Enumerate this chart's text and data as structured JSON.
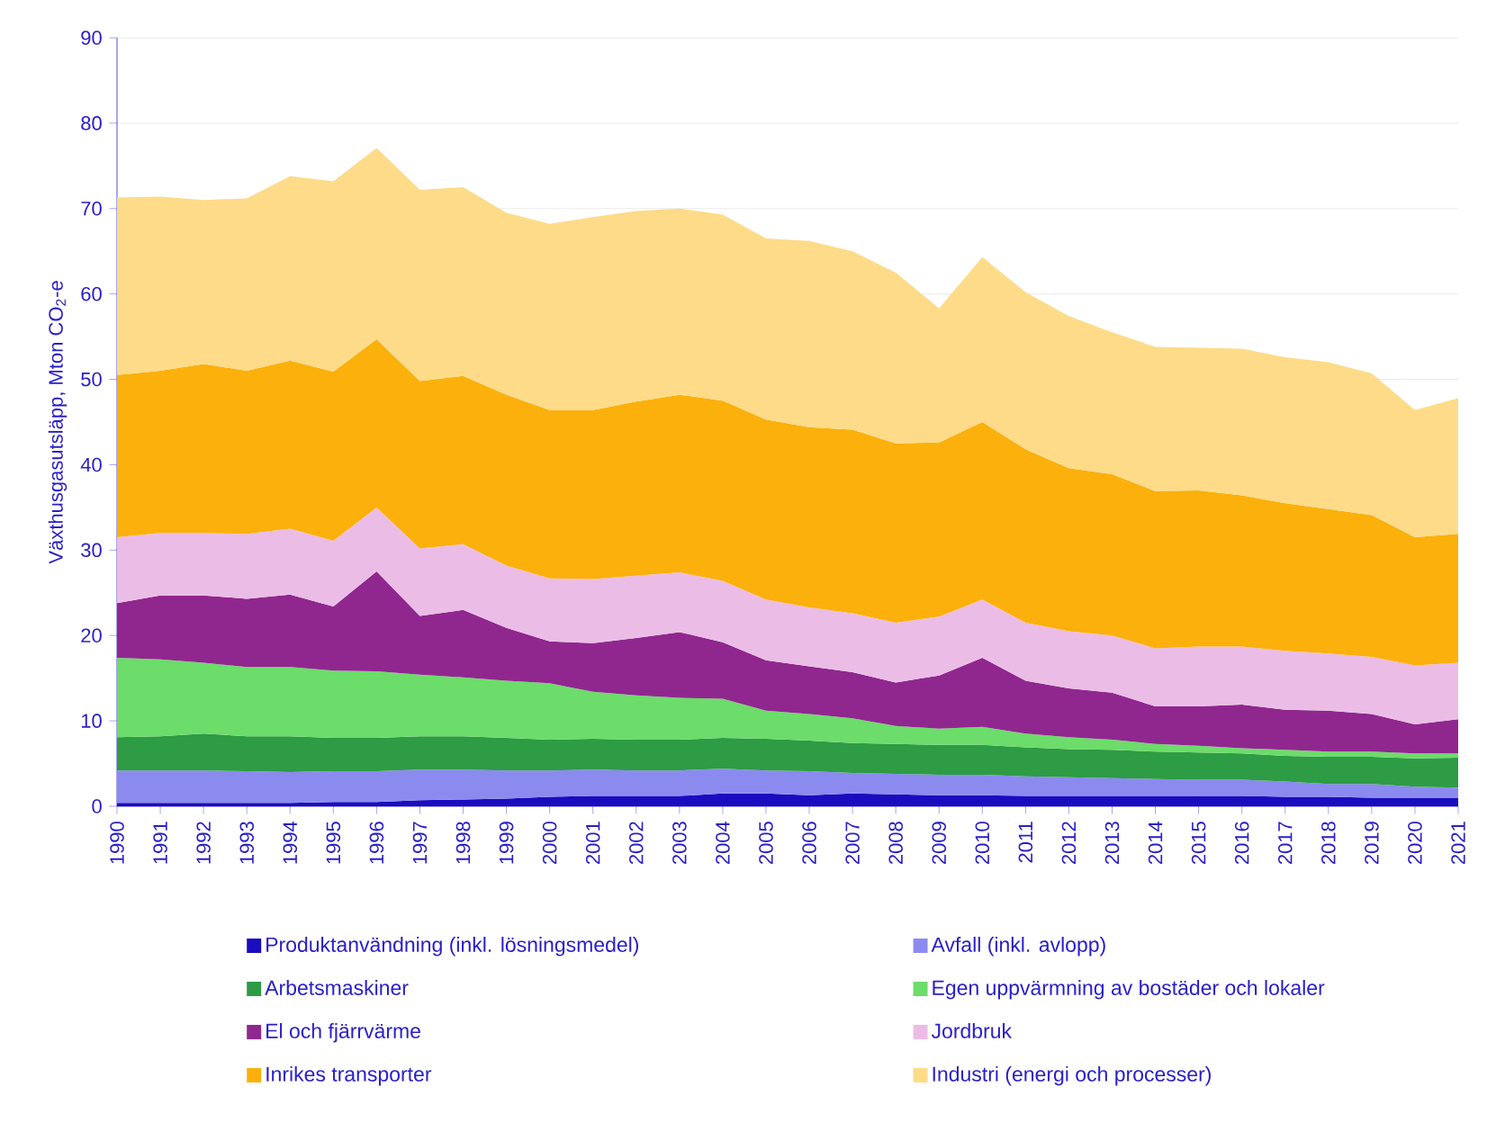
{
  "chart_data": {
    "type": "area",
    "stacked": true,
    "ylabel": "Växthusgasutsläpp, Mton CO$_{2}$-e",
    "grid": "y",
    "legend": "bottom",
    "x": [
      1990,
      1991,
      1992,
      1993,
      1994,
      1995,
      1996,
      1997,
      1998,
      1999,
      2000,
      2001,
      2002,
      2003,
      2004,
      2005,
      2006,
      2007,
      2008,
      2009,
      2010,
      2011,
      2012,
      2013,
      2014,
      2015,
      2016,
      2017,
      2018,
      2019,
      2020,
      2021
    ],
    "xlim": [
      1990,
      2021
    ],
    "xticks": [
      1990,
      1991,
      1992,
      1993,
      1994,
      1995,
      1996,
      1997,
      1998,
      1999,
      2000,
      2001,
      2002,
      2003,
      2004,
      2005,
      2006,
      2007,
      2008,
      2009,
      2010,
      2011,
      2012,
      2013,
      2014,
      2015,
      2016,
      2017,
      2018,
      2019,
      2020,
      2021
    ],
    "ylim": [
      0,
      90
    ],
    "yticks": [
      0,
      10,
      20,
      30,
      40,
      50,
      60,
      70,
      80,
      90
    ],
    "series": [
      {
        "name": "Produktanvändning (inkl. lösningsmedel)",
        "color": "#1a0dbf",
        "values": [
          0.4,
          0.4,
          0.4,
          0.4,
          0.4,
          0.5,
          0.5,
          0.7,
          0.8,
          0.9,
          1.1,
          1.2,
          1.2,
          1.2,
          1.5,
          1.5,
          1.3,
          1.5,
          1.4,
          1.3,
          1.3,
          1.2,
          1.2,
          1.2,
          1.2,
          1.2,
          1.2,
          1.1,
          1.1,
          1.0,
          1.0,
          1.0
        ]
      },
      {
        "name": "Avfall (inkl. avlopp)",
        "color": "#8b8bef",
        "values": [
          3.8,
          3.8,
          3.8,
          3.7,
          3.6,
          3.6,
          3.6,
          3.6,
          3.5,
          3.3,
          3.1,
          3.1,
          3.0,
          3.0,
          2.9,
          2.7,
          2.8,
          2.4,
          2.4,
          2.4,
          2.4,
          2.3,
          2.2,
          2.1,
          2.0,
          1.9,
          1.9,
          1.8,
          1.5,
          1.6,
          1.3,
          1.2
        ]
      },
      {
        "name": "Arbetsmaskiner",
        "color": "#2e9b45",
        "values": [
          3.9,
          4.0,
          4.3,
          4.1,
          4.2,
          3.9,
          3.9,
          3.9,
          3.9,
          3.8,
          3.6,
          3.6,
          3.6,
          3.6,
          3.6,
          3.7,
          3.6,
          3.5,
          3.5,
          3.5,
          3.5,
          3.4,
          3.3,
          3.3,
          3.2,
          3.2,
          3.1,
          3.0,
          3.2,
          3.2,
          3.3,
          3.5
        ]
      },
      {
        "name": "Egen uppvärmning av bostäder och lokaler",
        "color": "#6cdc6a",
        "values": [
          9.3,
          9.0,
          8.3,
          8.1,
          8.1,
          7.9,
          7.8,
          7.2,
          6.9,
          6.7,
          6.6,
          5.5,
          5.2,
          4.9,
          4.6,
          3.3,
          3.1,
          2.9,
          2.1,
          1.9,
          2.1,
          1.6,
          1.4,
          1.2,
          0.9,
          0.8,
          0.6,
          0.7,
          0.6,
          0.6,
          0.6,
          0.5
        ]
      },
      {
        "name": "El och fjärrvärme",
        "color": "#90278f",
        "values": [
          6.4,
          7.5,
          7.9,
          8.0,
          8.5,
          7.5,
          11.7,
          6.9,
          7.9,
          6.2,
          4.9,
          5.7,
          6.7,
          7.7,
          6.6,
          5.9,
          5.6,
          5.4,
          5.1,
          6.2,
          8.1,
          6.2,
          5.7,
          5.5,
          4.4,
          4.6,
          5.1,
          4.7,
          4.8,
          4.4,
          3.4,
          4.0
        ]
      },
      {
        "name": "Jordbruk",
        "color": "#ebbde6",
        "values": [
          7.7,
          7.3,
          7.3,
          7.6,
          7.7,
          7.7,
          7.5,
          7.9,
          7.7,
          7.3,
          7.4,
          7.5,
          7.3,
          7.0,
          7.2,
          7.1,
          6.9,
          6.9,
          7.0,
          6.9,
          6.8,
          6.8,
          6.7,
          6.7,
          6.8,
          7.0,
          6.8,
          6.9,
          6.7,
          6.7,
          6.9,
          6.6
        ]
      },
      {
        "name": "Inrikes transporter",
        "color": "#fbb00b",
        "values": [
          19.0,
          19.0,
          19.8,
          19.1,
          19.7,
          19.8,
          19.7,
          19.6,
          19.7,
          20.0,
          19.7,
          19.8,
          20.4,
          20.8,
          21.1,
          21.1,
          21.1,
          21.5,
          21.0,
          20.4,
          20.8,
          20.3,
          19.1,
          18.9,
          18.4,
          18.3,
          17.7,
          17.3,
          16.9,
          16.6,
          15.0,
          15.1
        ]
      },
      {
        "name": "Industri (energi och processer)",
        "color": "#fddb88",
        "values": [
          20.8,
          20.4,
          19.2,
          20.2,
          21.6,
          22.3,
          22.4,
          22.4,
          22.1,
          21.3,
          21.8,
          22.6,
          22.3,
          21.8,
          21.8,
          21.2,
          21.8,
          20.9,
          20.0,
          15.7,
          19.3,
          18.4,
          17.8,
          16.6,
          16.9,
          16.7,
          17.2,
          17.1,
          17.2,
          16.6,
          14.9,
          15.9
        ]
      }
    ]
  }
}
